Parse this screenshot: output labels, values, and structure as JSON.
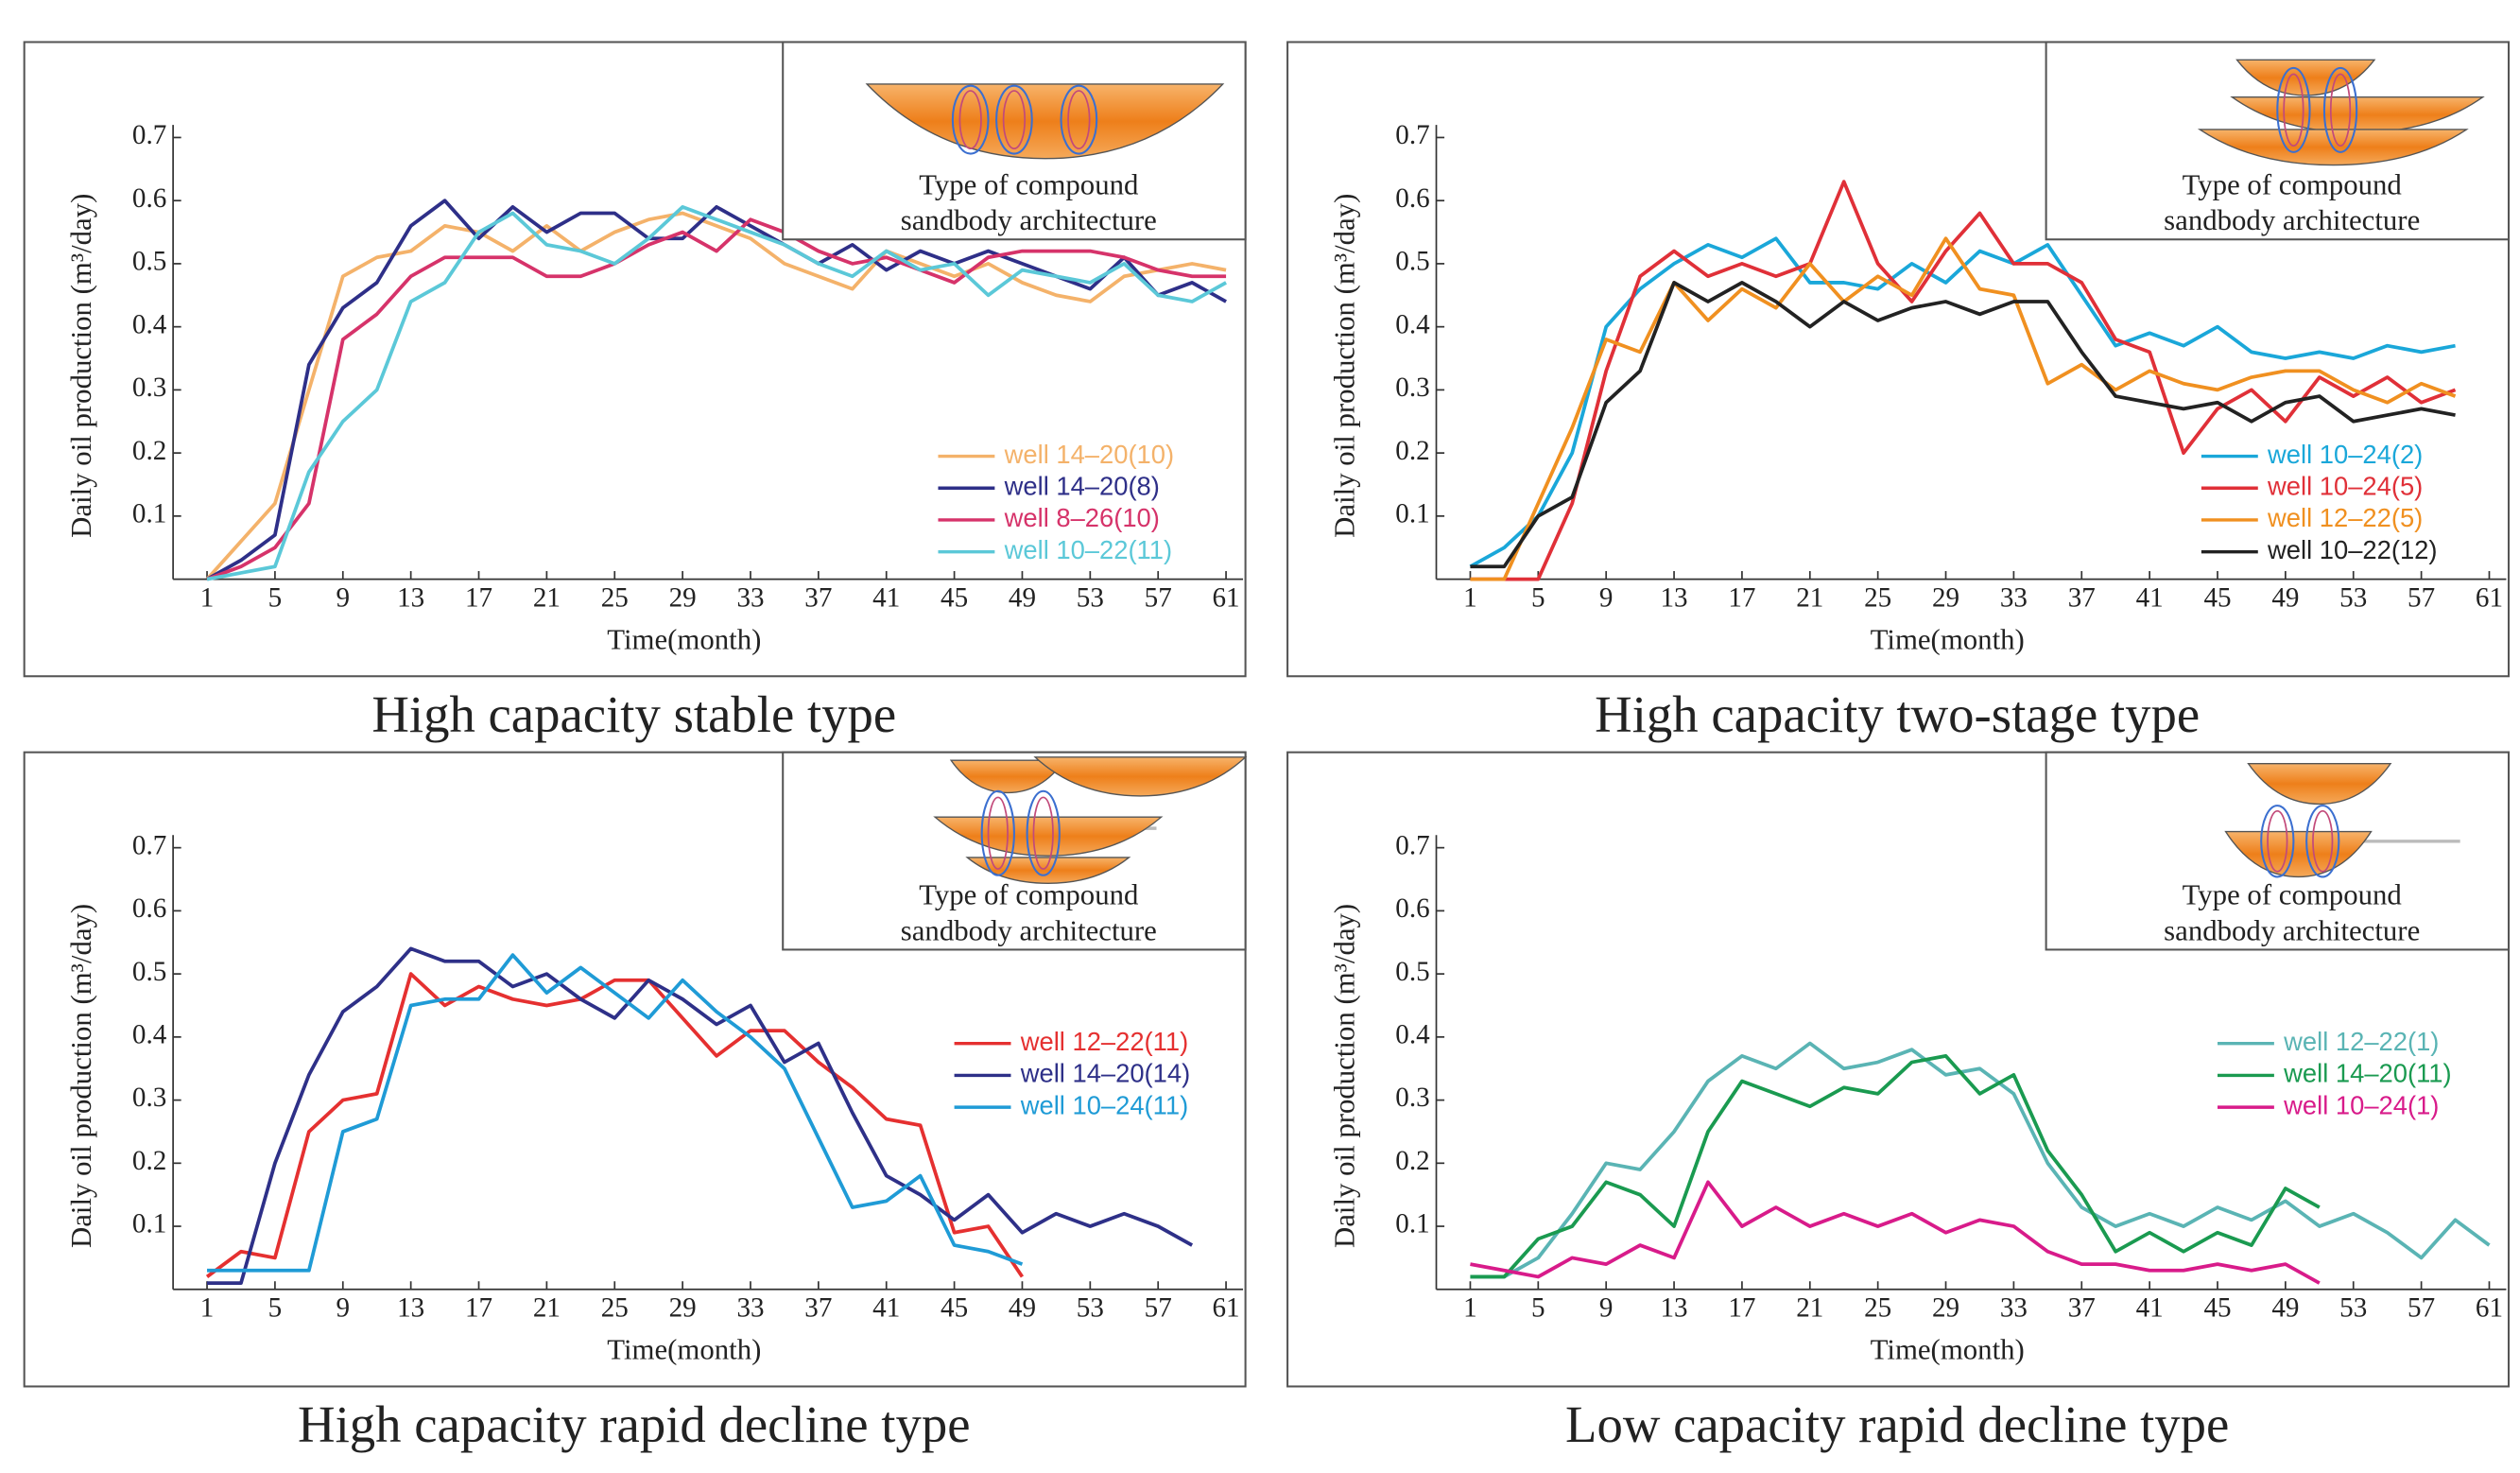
{
  "chart_data": [
    {
      "type": "line",
      "title": "High capacity stable type",
      "x_label": "Time(month)",
      "y_label": "Daily oil production (m³/day)",
      "inset_label": [
        "Type of compound",
        "sandbody architecture"
      ],
      "legend": "lower right",
      "xlim": [
        -1,
        62
      ],
      "ylim": [
        0,
        0.72
      ],
      "xticks": [
        1,
        5,
        9,
        13,
        17,
        21,
        25,
        29,
        33,
        37,
        41,
        45,
        49,
        53,
        57,
        61
      ],
      "yticks": [
        0.1,
        0.2,
        0.3,
        0.4,
        0.5,
        0.6,
        0.7
      ],
      "x": [
        1,
        3,
        5,
        7,
        9,
        11,
        13,
        15,
        17,
        19,
        21,
        23,
        25,
        27,
        29,
        31,
        33,
        35,
        37,
        39,
        41,
        43,
        45,
        47,
        49,
        51,
        53,
        55,
        57,
        59,
        61
      ],
      "series": [
        {
          "name": "well 14–20(10)",
          "color": "#f4b26a",
          "values": [
            0,
            0.06,
            0.12,
            0.3,
            0.48,
            0.51,
            0.52,
            0.56,
            0.55,
            0.52,
            0.56,
            0.52,
            0.55,
            0.57,
            0.58,
            0.56,
            0.54,
            0.5,
            0.48,
            0.46,
            0.52,
            0.5,
            0.48,
            0.5,
            0.47,
            0.45,
            0.44,
            0.48,
            0.49,
            0.5,
            0.49
          ]
        },
        {
          "name": "well 14–20(8)",
          "color": "#2e2f88",
          "values": [
            0,
            0.03,
            0.07,
            0.34,
            0.43,
            0.47,
            0.56,
            0.6,
            0.54,
            0.59,
            0.55,
            0.58,
            0.58,
            0.54,
            0.54,
            0.59,
            0.56,
            0.53,
            0.5,
            0.53,
            0.49,
            0.52,
            0.5,
            0.52,
            0.5,
            0.48,
            0.46,
            0.51,
            0.45,
            0.47,
            0.44
          ]
        },
        {
          "name": "well 8–26(10)",
          "color": "#d6336a",
          "values": [
            0,
            0.02,
            0.05,
            0.12,
            0.38,
            0.42,
            0.48,
            0.51,
            0.51,
            0.51,
            0.48,
            0.48,
            0.5,
            0.53,
            0.55,
            0.52,
            0.57,
            0.55,
            0.52,
            0.5,
            0.51,
            0.49,
            0.47,
            0.51,
            0.52,
            0.52,
            0.52,
            0.51,
            0.49,
            0.48,
            0.48
          ]
        },
        {
          "name": "well 10–22(11)",
          "color": "#5bc8d8",
          "values": [
            0,
            0.01,
            0.02,
            0.17,
            0.25,
            0.3,
            0.44,
            0.47,
            0.55,
            0.58,
            0.53,
            0.52,
            0.5,
            0.54,
            0.59,
            0.57,
            0.55,
            0.53,
            0.5,
            0.48,
            0.52,
            0.49,
            0.5,
            0.45,
            0.49,
            0.48,
            0.47,
            0.5,
            0.45,
            0.44,
            0.47
          ]
        }
      ]
    },
    {
      "type": "line",
      "title": "High capacity two-stage type",
      "x_label": "Time(month)",
      "y_label": "Daily oil production (m³/day)",
      "inset_label": [
        "Type of compound",
        "sandbody architecture"
      ],
      "legend": "lower right",
      "xlim": [
        -1,
        62
      ],
      "ylim": [
        0,
        0.72
      ],
      "xticks": [
        1,
        5,
        9,
        13,
        17,
        21,
        25,
        29,
        33,
        37,
        41,
        45,
        49,
        53,
        57,
        61
      ],
      "yticks": [
        0.1,
        0.2,
        0.3,
        0.4,
        0.5,
        0.6,
        0.7
      ],
      "x": [
        1,
        3,
        5,
        7,
        9,
        11,
        13,
        15,
        17,
        19,
        21,
        23,
        25,
        27,
        29,
        31,
        33,
        35,
        37,
        39,
        41,
        43,
        45,
        47,
        49,
        51,
        53,
        55,
        57,
        59,
        61
      ],
      "series": [
        {
          "name": "well 10–24(2)",
          "color": "#1aa7d9",
          "values": [
            0.02,
            0.05,
            0.1,
            0.2,
            0.4,
            0.46,
            0.5,
            0.53,
            0.51,
            0.54,
            0.47,
            0.47,
            0.46,
            0.5,
            0.47,
            0.52,
            0.5,
            0.53,
            0.45,
            0.37,
            0.39,
            0.37,
            0.4,
            0.36,
            0.35,
            0.36,
            0.35,
            0.37,
            0.36,
            0.37,
            null
          ]
        },
        {
          "name": "well 10–24(5)",
          "color": "#e03038",
          "values": [
            0,
            0,
            0,
            0.12,
            0.33,
            0.48,
            0.52,
            0.48,
            0.5,
            0.48,
            0.5,
            0.63,
            0.5,
            0.44,
            0.52,
            0.58,
            0.5,
            0.5,
            0.47,
            0.38,
            0.36,
            0.2,
            0.27,
            0.3,
            0.25,
            0.32,
            0.29,
            0.32,
            0.28,
            0.3,
            null
          ]
        },
        {
          "name": "well 12–22(5)",
          "color": "#f09020",
          "values": [
            0,
            0,
            0.12,
            0.24,
            0.38,
            0.36,
            0.47,
            0.41,
            0.46,
            0.43,
            0.5,
            0.44,
            0.48,
            0.45,
            0.54,
            0.46,
            0.45,
            0.31,
            0.34,
            0.3,
            0.33,
            0.31,
            0.3,
            0.32,
            0.33,
            0.33,
            0.3,
            0.28,
            0.31,
            0.29,
            null
          ]
        },
        {
          "name": "well 10–22(12)",
          "color": "#222222",
          "values": [
            0.02,
            0.02,
            0.1,
            0.13,
            0.28,
            0.33,
            0.47,
            0.44,
            0.47,
            0.44,
            0.4,
            0.44,
            0.41,
            0.43,
            0.44,
            0.42,
            0.44,
            0.44,
            0.36,
            0.29,
            0.28,
            0.27,
            0.28,
            0.25,
            0.28,
            0.29,
            0.25,
            0.26,
            0.27,
            0.26,
            null
          ]
        }
      ]
    },
    {
      "type": "line",
      "title": "High capacity rapid decline type",
      "x_label": "Time(month)",
      "y_label": "Daily oil production (m³/day)",
      "inset_label": [
        "Type of compound",
        "sandbody architecture"
      ],
      "legend": "center right",
      "xlim": [
        -1,
        62
      ],
      "ylim": [
        0,
        0.72
      ],
      "xticks": [
        1,
        5,
        9,
        13,
        17,
        21,
        25,
        29,
        33,
        37,
        41,
        45,
        49,
        53,
        57,
        61
      ],
      "yticks": [
        0.1,
        0.2,
        0.3,
        0.4,
        0.5,
        0.6,
        0.7
      ],
      "x": [
        1,
        3,
        5,
        7,
        9,
        11,
        13,
        15,
        17,
        19,
        21,
        23,
        25,
        27,
        29,
        31,
        33,
        35,
        37,
        39,
        41,
        43,
        45,
        47,
        49,
        51,
        53,
        55,
        57,
        59,
        61
      ],
      "series": [
        {
          "name": "well 12–22(11)",
          "color": "#e53030",
          "values": [
            0.02,
            0.06,
            0.05,
            0.25,
            0.3,
            0.31,
            0.5,
            0.45,
            0.48,
            0.46,
            0.45,
            0.46,
            0.49,
            0.49,
            0.43,
            0.37,
            0.41,
            0.41,
            0.36,
            0.32,
            0.27,
            0.26,
            0.09,
            0.1,
            0.02,
            null,
            null,
            null,
            null,
            null,
            null
          ]
        },
        {
          "name": "well 14–20(14)",
          "color": "#2e3088",
          "values": [
            0.01,
            0.01,
            0.2,
            0.34,
            0.44,
            0.48,
            0.54,
            0.52,
            0.52,
            0.48,
            0.5,
            0.46,
            0.43,
            0.49,
            0.46,
            0.42,
            0.45,
            0.36,
            0.39,
            0.28,
            0.18,
            0.15,
            0.11,
            0.15,
            0.09,
            0.12,
            0.1,
            0.12,
            0.1,
            0.07,
            null
          ]
        },
        {
          "name": "well 10–24(11)",
          "color": "#1f9bd6",
          "values": [
            0.03,
            0.03,
            0.03,
            0.03,
            0.25,
            0.27,
            0.45,
            0.46,
            0.46,
            0.53,
            0.47,
            0.51,
            0.47,
            0.43,
            0.49,
            0.44,
            0.4,
            0.35,
            0.24,
            0.13,
            0.14,
            0.18,
            0.07,
            0.06,
            0.04,
            null,
            null,
            null,
            null,
            null,
            null
          ]
        }
      ]
    },
    {
      "type": "line",
      "title": "Low capacity rapid decline type",
      "x_label": "Time(month)",
      "y_label": "Daily oil production (m³/day)",
      "inset_label": [
        "Type of compound",
        "sandbody architecture"
      ],
      "legend": "center right",
      "xlim": [
        -1,
        62
      ],
      "ylim": [
        0,
        0.72
      ],
      "xticks": [
        1,
        5,
        9,
        13,
        17,
        21,
        25,
        29,
        33,
        37,
        41,
        45,
        49,
        53,
        57,
        61
      ],
      "yticks": [
        0.1,
        0.2,
        0.3,
        0.4,
        0.5,
        0.6,
        0.7
      ],
      "x": [
        1,
        3,
        5,
        7,
        9,
        11,
        13,
        15,
        17,
        19,
        21,
        23,
        25,
        27,
        29,
        31,
        33,
        35,
        37,
        39,
        41,
        43,
        45,
        47,
        49,
        51,
        53,
        55,
        57,
        59,
        61
      ],
      "series": [
        {
          "name": "well 12–22(1)",
          "color": "#5ab4b4",
          "values": [
            0.02,
            0.02,
            0.05,
            0.12,
            0.2,
            0.19,
            0.25,
            0.33,
            0.37,
            0.35,
            0.39,
            0.35,
            0.36,
            0.38,
            0.34,
            0.35,
            0.31,
            0.2,
            0.13,
            0.1,
            0.12,
            0.1,
            0.13,
            0.11,
            0.14,
            0.1,
            0.12,
            0.09,
            0.05,
            0.11,
            0.07
          ]
        },
        {
          "name": "well 14–20(11)",
          "color": "#1a9a50",
          "values": [
            0.02,
            0.02,
            0.08,
            0.1,
            0.17,
            0.15,
            0.1,
            0.25,
            0.33,
            0.31,
            0.29,
            0.32,
            0.31,
            0.36,
            0.37,
            0.31,
            0.34,
            0.22,
            0.15,
            0.06,
            0.09,
            0.06,
            0.09,
            0.07,
            0.16,
            0.13,
            null,
            null,
            null,
            null,
            null
          ]
        },
        {
          "name": "well 10–24(1)",
          "color": "#d81b8a",
          "values": [
            0.04,
            0.03,
            0.02,
            0.05,
            0.04,
            0.07,
            0.05,
            0.17,
            0.1,
            0.13,
            0.1,
            0.12,
            0.1,
            0.12,
            0.09,
            0.11,
            0.1,
            0.06,
            0.04,
            0.04,
            0.03,
            0.03,
            0.04,
            0.03,
            0.04,
            0.01,
            null,
            null,
            null,
            null,
            null
          ]
        }
      ]
    }
  ]
}
